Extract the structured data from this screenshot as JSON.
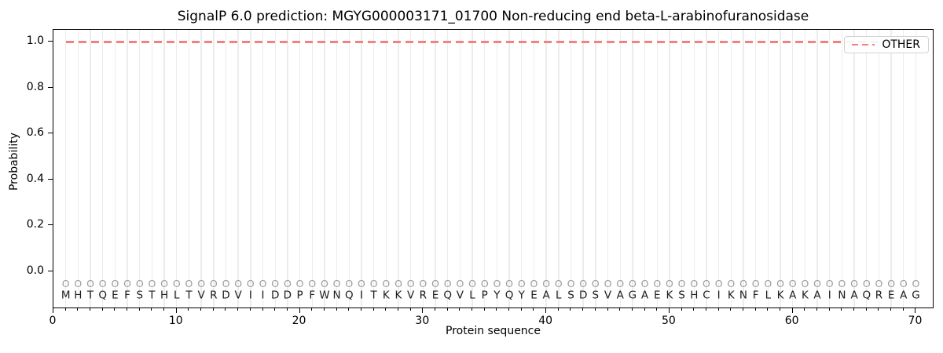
{
  "title": "SignalP 6.0 prediction: MGYG000003171_01700 Non-reducing end beta-L-arabinofuranosidase",
  "axes": {
    "xlabel": "Protein sequence",
    "ylabel": "Probability",
    "xticks": [
      0,
      10,
      20,
      30,
      40,
      50,
      60,
      70
    ],
    "yticks": [
      0.0,
      0.2,
      0.4,
      0.6,
      0.8,
      1.0
    ],
    "xlim": [
      0,
      71.5
    ],
    "ylim": [
      -0.165,
      1.053
    ]
  },
  "legend": {
    "position": "upper right",
    "entries": [
      {
        "label": "OTHER",
        "color": "#f48080",
        "linestyle": "dashed"
      }
    ]
  },
  "colors": {
    "other_line": "#f48080",
    "grid": "#ececec",
    "marker": "#9b9b9b",
    "residue_text": "#1c1c1c",
    "axis": "#000000"
  },
  "chart_data": {
    "type": "line",
    "title": "SignalP 6.0 prediction: MGYG000003171_01700 Non-reducing end beta-L-arabinofuranosidase",
    "xlabel": "Protein sequence",
    "ylabel": "Probability",
    "xlim": [
      0,
      71.5
    ],
    "ylim": [
      -0.165,
      1.053
    ],
    "grid": "vertical, one line per residue position",
    "legend_position": "upper right",
    "x": [
      1,
      2,
      3,
      4,
      5,
      6,
      7,
      8,
      9,
      10,
      11,
      12,
      13,
      14,
      15,
      16,
      17,
      18,
      19,
      20,
      21,
      22,
      23,
      24,
      25,
      26,
      27,
      28,
      29,
      30,
      31,
      32,
      33,
      34,
      35,
      36,
      37,
      38,
      39,
      40,
      41,
      42,
      43,
      44,
      45,
      46,
      47,
      48,
      49,
      50,
      51,
      52,
      53,
      54,
      55,
      56,
      57,
      58,
      59,
      60,
      61,
      62,
      63,
      64,
      65,
      66,
      67,
      68,
      69,
      70
    ],
    "series": [
      {
        "name": "OTHER",
        "color": "#f48080",
        "linestyle": "dashed",
        "values": [
          1.0,
          1.0,
          1.0,
          1.0,
          1.0,
          1.0,
          1.0,
          1.0,
          1.0,
          1.0,
          1.0,
          1.0,
          1.0,
          1.0,
          1.0,
          1.0,
          1.0,
          1.0,
          1.0,
          1.0,
          1.0,
          1.0,
          1.0,
          1.0,
          1.0,
          1.0,
          1.0,
          1.0,
          1.0,
          1.0,
          1.0,
          1.0,
          1.0,
          1.0,
          1.0,
          1.0,
          1.0,
          1.0,
          1.0,
          1.0,
          1.0,
          1.0,
          1.0,
          1.0,
          1.0,
          1.0,
          1.0,
          1.0,
          1.0,
          1.0,
          1.0,
          1.0,
          1.0,
          1.0,
          1.0,
          1.0,
          1.0,
          1.0,
          1.0,
          1.0,
          1.0,
          1.0,
          1.0,
          1.0,
          1.0,
          1.0,
          1.0,
          1.0,
          1.0,
          1.0
        ]
      }
    ],
    "sequence_letters": "MHTQEFSTHLTVRDVIIDDPFWNQITKKVREQVLPYQYEALSDSVAGAEKSHCIKNFLKAKAINAQREAG",
    "per_residue_labels": "OOOOOOOOOOOOOOOOOOOOOOOOOOOOOOOOOOOOOOOOOOOOOOOOOOOOOOOOOOOOOOOOOOOOOO",
    "labels_row_y": -0.054,
    "letters_row_y": -0.106
  }
}
